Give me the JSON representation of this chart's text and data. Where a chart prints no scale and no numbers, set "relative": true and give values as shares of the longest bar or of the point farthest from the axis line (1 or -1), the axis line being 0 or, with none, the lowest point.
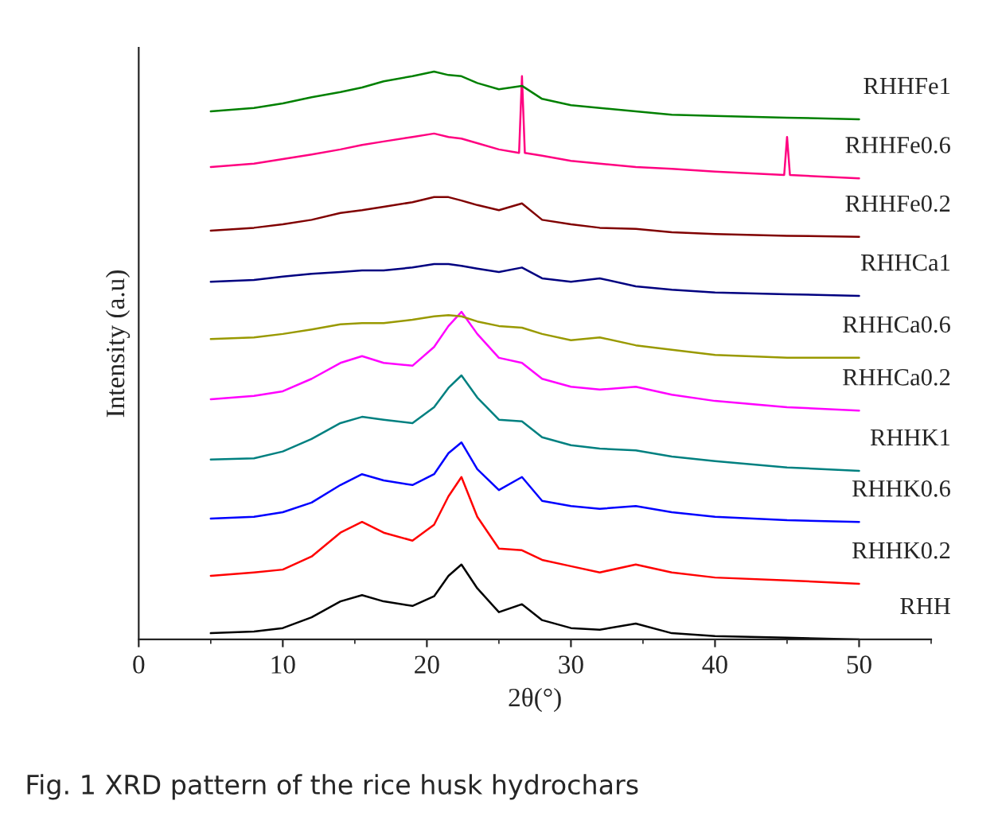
{
  "chart_data": {
    "type": "line",
    "relative": true,
    "xlabel": "2θ(°)",
    "ylabel": "Intensity (a.u)",
    "xlim": [
      0,
      55
    ],
    "xticks": [
      0,
      10,
      20,
      30,
      40,
      50
    ],
    "legend": false,
    "grid": false,
    "annotations": [
      "Fig. 1 XRD pattern of the rice husk hydrochars"
    ],
    "x": [
      5,
      8,
      10,
      12,
      14,
      15.5,
      17,
      19,
      20.5,
      21.5,
      22.4,
      23.5,
      25,
      26.6,
      28,
      30,
      32,
      34.5,
      37,
      40,
      45,
      50
    ],
    "series": [
      {
        "name": "RHH",
        "color": "#000000",
        "values": [
          0.011,
          0.014,
          0.02,
          0.039,
          0.067,
          0.078,
          0.067,
          0.059,
          0.076,
          0.112,
          0.132,
          0.09,
          0.048,
          0.062,
          0.034,
          0.02,
          0.017,
          0.028,
          0.011,
          0.006,
          0.003,
          0.0
        ]
      },
      {
        "name": "RHHK0.2",
        "color": "#ff0000",
        "values": [
          0.112,
          0.118,
          0.123,
          0.146,
          0.188,
          0.207,
          0.188,
          0.174,
          0.202,
          0.252,
          0.286,
          0.216,
          0.16,
          0.157,
          0.14,
          0.129,
          0.118,
          0.132,
          0.118,
          0.109,
          0.104,
          0.098
        ]
      },
      {
        "name": "RHHK0.6",
        "color": "#0000ff",
        "values": [
          0.213,
          0.216,
          0.224,
          0.241,
          0.272,
          0.291,
          0.28,
          0.272,
          0.291,
          0.328,
          0.347,
          0.3,
          0.263,
          0.286,
          0.244,
          0.235,
          0.23,
          0.235,
          0.224,
          0.216,
          0.21,
          0.207
        ]
      },
      {
        "name": "RHHK1",
        "color": "#008080",
        "values": [
          0.317,
          0.319,
          0.331,
          0.353,
          0.381,
          0.392,
          0.387,
          0.381,
          0.409,
          0.443,
          0.465,
          0.426,
          0.387,
          0.384,
          0.356,
          0.342,
          0.336,
          0.333,
          0.322,
          0.314,
          0.303,
          0.297
        ]
      },
      {
        "name": "RHHCa0.2",
        "color": "#ff00ff",
        "values": [
          0.423,
          0.429,
          0.437,
          0.459,
          0.487,
          0.499,
          0.487,
          0.482,
          0.515,
          0.552,
          0.577,
          0.538,
          0.496,
          0.487,
          0.459,
          0.445,
          0.44,
          0.445,
          0.431,
          0.42,
          0.409,
          0.403
        ]
      },
      {
        "name": "RHHCa0.6",
        "color": "#999900",
        "values": [
          0.529,
          0.532,
          0.538,
          0.546,
          0.555,
          0.557,
          0.557,
          0.563,
          0.569,
          0.571,
          0.569,
          0.56,
          0.552,
          0.549,
          0.538,
          0.527,
          0.532,
          0.518,
          0.51,
          0.501,
          0.496,
          0.496
        ]
      },
      {
        "name": "RHHCa1",
        "color": "#000080",
        "values": [
          0.63,
          0.633,
          0.639,
          0.644,
          0.647,
          0.65,
          0.65,
          0.655,
          0.661,
          0.661,
          0.658,
          0.653,
          0.647,
          0.655,
          0.636,
          0.63,
          0.636,
          0.622,
          0.616,
          0.611,
          0.608,
          0.605
        ]
      },
      {
        "name": "RHHFe0.2",
        "color": "#800000",
        "values": [
          0.72,
          0.725,
          0.731,
          0.739,
          0.751,
          0.756,
          0.762,
          0.77,
          0.779,
          0.779,
          0.773,
          0.765,
          0.756,
          0.768,
          0.739,
          0.731,
          0.725,
          0.723,
          0.717,
          0.714,
          0.711,
          0.709
        ]
      },
      {
        "name": "RHHFe0.6",
        "color": "#ff0080",
        "x": [
          5,
          8,
          10,
          12,
          14,
          15.5,
          17,
          19,
          20.5,
          21.5,
          22.4,
          23.5,
          25,
          26.4,
          26.6,
          26.8,
          28,
          30,
          32,
          34.5,
          37,
          40,
          44.8,
          45,
          45.2,
          50
        ],
        "values": [
          0.832,
          0.838,
          0.846,
          0.854,
          0.863,
          0.871,
          0.877,
          0.885,
          0.891,
          0.885,
          0.882,
          0.874,
          0.863,
          0.857,
          0.992,
          0.857,
          0.852,
          0.843,
          0.838,
          0.832,
          0.829,
          0.824,
          0.818,
          0.885,
          0.818,
          0.812
        ]
      },
      {
        "name": "RHHFe1",
        "color": "#008000",
        "values": [
          0.93,
          0.936,
          0.944,
          0.955,
          0.964,
          0.972,
          0.983,
          0.992,
          1.0,
          0.994,
          0.992,
          0.98,
          0.969,
          0.975,
          0.952,
          0.941,
          0.936,
          0.93,
          0.924,
          0.922,
          0.919,
          0.916
        ]
      }
    ]
  }
}
